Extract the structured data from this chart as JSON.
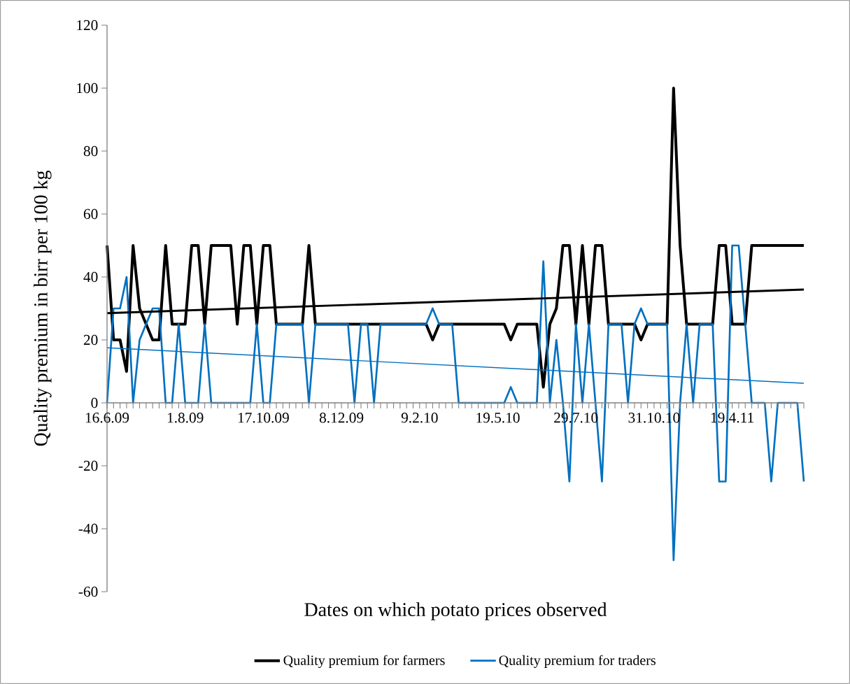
{
  "chart_data": {
    "type": "line",
    "xlabel": "Dates on which potato prices observed",
    "ylabel": "Quality premium in birr per 100 kg",
    "categories": [
      "16.6.09",
      null,
      null,
      null,
      null,
      null,
      null,
      null,
      null,
      null,
      null,
      null,
      "1.8.09",
      null,
      null,
      null,
      null,
      null,
      null,
      null,
      null,
      null,
      null,
      null,
      "17.10.09",
      null,
      null,
      null,
      null,
      null,
      null,
      null,
      null,
      null,
      null,
      null,
      "8.12.09",
      null,
      null,
      null,
      null,
      null,
      null,
      null,
      null,
      null,
      null,
      null,
      "9.2.10",
      null,
      null,
      null,
      null,
      null,
      null,
      null,
      null,
      null,
      null,
      null,
      "19.5.10",
      null,
      null,
      null,
      null,
      null,
      null,
      null,
      null,
      null,
      null,
      null,
      "29.7.10",
      null,
      null,
      null,
      null,
      null,
      null,
      null,
      null,
      null,
      null,
      null,
      "31.10.10",
      null,
      null,
      null,
      null,
      null,
      null,
      null,
      null,
      null,
      null,
      null,
      "19.4.11",
      null,
      null,
      null,
      null,
      null,
      null,
      null,
      null,
      null,
      null,
      null
    ],
    "series": [
      {
        "name": "Quality premium for farmers",
        "color": "#000000",
        "values": [
          50,
          20,
          20,
          10,
          50,
          30,
          25,
          20,
          20,
          50,
          25,
          25,
          25,
          50,
          50,
          25,
          50,
          50,
          50,
          50,
          25,
          50,
          50,
          25,
          50,
          50,
          25,
          25,
          25,
          25,
          25,
          50,
          25,
          25,
          25,
          25,
          25,
          25,
          25,
          25,
          25,
          25,
          25,
          25,
          25,
          25,
          25,
          25,
          25,
          25,
          20,
          25,
          25,
          25,
          25,
          25,
          25,
          25,
          25,
          25,
          25,
          25,
          20,
          25,
          25,
          25,
          25,
          5,
          25,
          30,
          50,
          50,
          25,
          50,
          25,
          50,
          50,
          25,
          25,
          25,
          25,
          25,
          20,
          25,
          25,
          25,
          25,
          100,
          50,
          25,
          25,
          25,
          25,
          25,
          50,
          50,
          25,
          25,
          25,
          50,
          50,
          50,
          50,
          50,
          50,
          50,
          50,
          50
        ]
      },
      {
        "name": "Quality premium for traders",
        "color": "#0070c0",
        "values": [
          0,
          30,
          30,
          40,
          0,
          20,
          25,
          30,
          30,
          0,
          0,
          25,
          0,
          0,
          0,
          25,
          0,
          0,
          0,
          0,
          0,
          0,
          0,
          25,
          0,
          0,
          25,
          25,
          25,
          25,
          25,
          0,
          25,
          25,
          25,
          25,
          25,
          25,
          0,
          25,
          25,
          0,
          25,
          25,
          25,
          25,
          25,
          25,
          25,
          25,
          30,
          25,
          25,
          25,
          0,
          0,
          0,
          0,
          0,
          0,
          0,
          0,
          5,
          0,
          0,
          0,
          0,
          45,
          0,
          20,
          0,
          -25,
          25,
          0,
          25,
          0,
          -25,
          25,
          25,
          25,
          0,
          25,
          30,
          25,
          25,
          25,
          25,
          -50,
          0,
          25,
          0,
          25,
          25,
          25,
          -25,
          -25,
          50,
          50,
          25,
          0,
          0,
          0,
          -25,
          0,
          0,
          0,
          0,
          -25
        ]
      },
      {
        "color": "#000000",
        "values": [
          28.5,
          null,
          null,
          null,
          null,
          null,
          null,
          null,
          null,
          null,
          null,
          null,
          null,
          null,
          null,
          null,
          null,
          null,
          null,
          null,
          null,
          null,
          null,
          null,
          null,
          null,
          null,
          null,
          null,
          null,
          null,
          null,
          null,
          null,
          null,
          null,
          null,
          null,
          null,
          null,
          null,
          null,
          null,
          null,
          null,
          null,
          null,
          null,
          null,
          null,
          null,
          null,
          null,
          null,
          null,
          null,
          null,
          null,
          null,
          null,
          null,
          null,
          null,
          null,
          null,
          null,
          null,
          null,
          null,
          null,
          null,
          null,
          null,
          null,
          null,
          null,
          null,
          null,
          null,
          null,
          null,
          null,
          null,
          null,
          null,
          null,
          null,
          null,
          null,
          null,
          null,
          null,
          null,
          null,
          null,
          null,
          null,
          null,
          null,
          null,
          null,
          null,
          null,
          null,
          null,
          null,
          null,
          36
        ]
      },
      {
        "color": "#0070c0",
        "values": [
          17.5,
          null,
          null,
          null,
          null,
          null,
          null,
          null,
          null,
          null,
          null,
          null,
          null,
          null,
          null,
          null,
          null,
          null,
          null,
          null,
          null,
          null,
          null,
          null,
          null,
          null,
          null,
          null,
          null,
          null,
          null,
          null,
          null,
          null,
          null,
          null,
          null,
          null,
          null,
          null,
          null,
          null,
          null,
          null,
          null,
          null,
          null,
          null,
          null,
          null,
          null,
          null,
          null,
          null,
          null,
          null,
          null,
          null,
          null,
          null,
          null,
          null,
          null,
          null,
          null,
          null,
          null,
          null,
          null,
          null,
          null,
          null,
          null,
          null,
          null,
          null,
          null,
          null,
          null,
          null,
          null,
          null,
          null,
          null,
          null,
          null,
          null,
          null,
          null,
          null,
          null,
          null,
          null,
          null,
          null,
          null,
          null,
          null,
          null,
          null,
          null,
          null,
          null,
          null,
          null,
          null,
          null,
          6.2
        ]
      }
    ],
    "ylim": [
      -60,
      120
    ],
    "yticks": [
      -60,
      -40,
      -20,
      0,
      20,
      40,
      60,
      80,
      100,
      120
    ],
    "legend": "bottom"
  }
}
